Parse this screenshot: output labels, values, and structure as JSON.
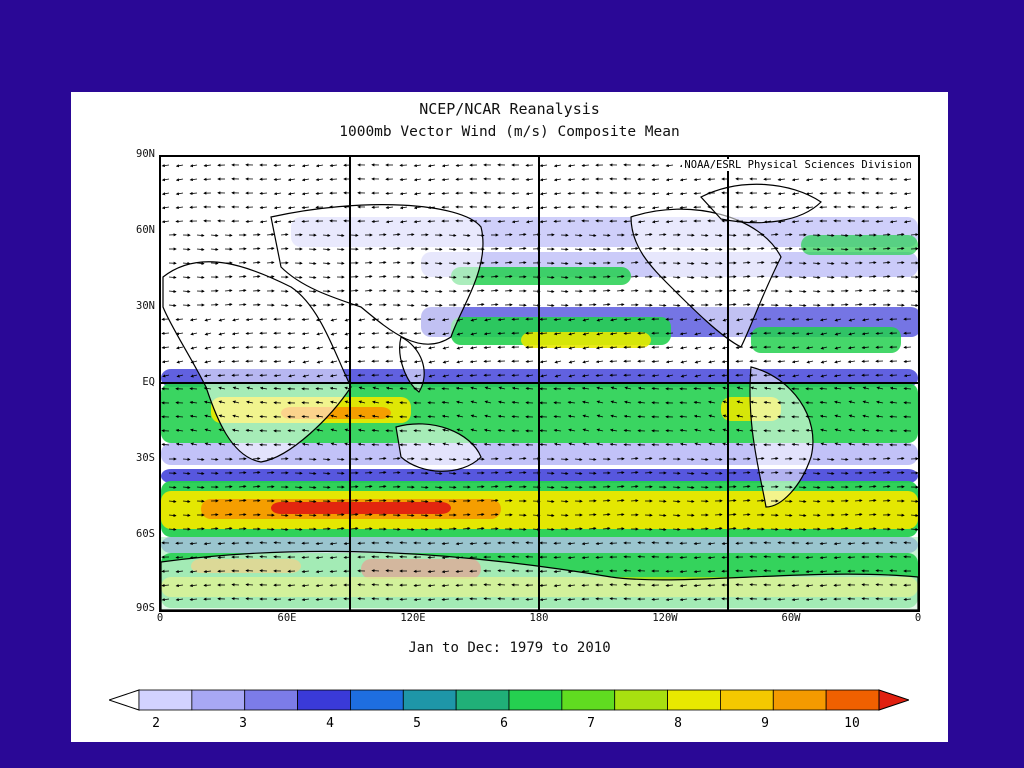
{
  "title": "NCEP/NCAR Reanalysis",
  "subtitle": "1000mb Vector Wind (m/s) Composite Mean",
  "credit": "NOAA/ESRL Physical Sciences Division",
  "date_range": "Jan to Dec: 1979 to 2010",
  "lat_labels": [
    "90N",
    "60N",
    "30N",
    "EQ",
    "30S",
    "60S",
    "90S"
  ],
  "lon_labels": [
    "0",
    "60E",
    "120E",
    "180",
    "120W",
    "60W",
    "0"
  ],
  "colorbar": {
    "labels": [
      "2",
      "3",
      "4",
      "5",
      "6",
      "7",
      "8",
      "9",
      "10"
    ],
    "colors": [
      "#ffffff",
      "#d2d2ff",
      "#a8a8f5",
      "#7c7ce8",
      "#3a3ad8",
      "#1e6ee0",
      "#1e96a8",
      "#20b078",
      "#25d050",
      "#60dc20",
      "#a8e010",
      "#e8e800",
      "#f5c800",
      "#f59a00",
      "#f06000",
      "#e02010"
    ]
  },
  "map": {
    "background": "#ffffff",
    "band_colors": {
      "low": "#a8a8f5",
      "mid": "#3a3ad8",
      "green": "#25d050",
      "yellow": "#e8e800",
      "orange": "#f59a00",
      "red": "#e02010"
    }
  }
}
